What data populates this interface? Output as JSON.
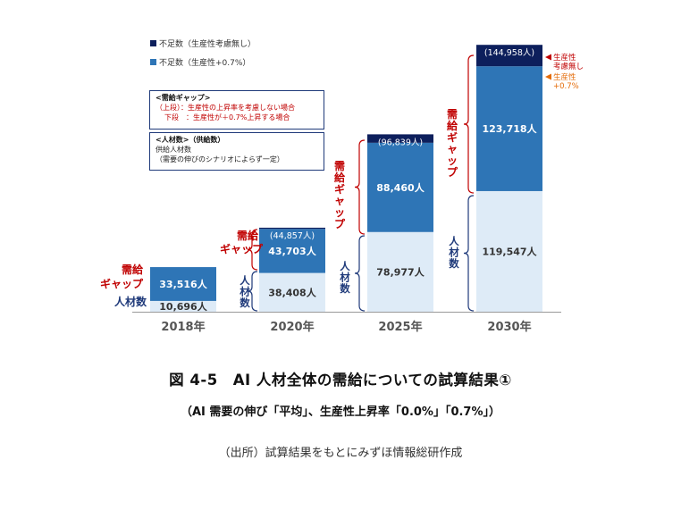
{
  "legend": {
    "items": [
      {
        "label": "不足数（生産性考慮無し）",
        "color": "#0d1f5c"
      },
      {
        "label": "不足数（生産性+0.7%）",
        "color": "#2e75b6"
      }
    ]
  },
  "gap_box": {
    "title": "<需給ギャップ>",
    "line1": "（上段）：生産性の上昇率を考慮しない場合",
    "line2": "下段　：生産性が＋0.7%上昇する場合"
  },
  "supply_box": {
    "title": "<人材数>（供給数）",
    "line1": "供給人材数",
    "line2": "（需要の伸びのシナリオによらず一定）"
  },
  "brace_labels": {
    "gap": "需給ギャップ",
    "gap_2020_a": "需給",
    "gap_2020_b": "ギャップ",
    "supply": "人材数"
  },
  "right_notes": {
    "no_productivity": "生産性\n考慮無し",
    "productivity": "生産性\n+0.7%"
  },
  "chart_data": {
    "type": "bar",
    "stacked": true,
    "categories": [
      "2018年",
      "2020年",
      "2025年",
      "2030年"
    ],
    "series": [
      {
        "name": "人材数",
        "values": [
          10696,
          38408,
          78977,
          119547
        ],
        "labels": [
          "10,696人",
          "38,408人",
          "78,977人",
          "119,547人"
        ],
        "color": "#deebf7"
      },
      {
        "name": "不足数（生産性+0.7%）",
        "values": [
          33516,
          43703,
          88460,
          123718
        ],
        "labels": [
          "33,516人",
          "43,703人",
          "88,460人",
          "123,718人"
        ],
        "color": "#2e75b6"
      },
      {
        "name": "不足数（生産性考慮無し）",
        "values": [
          null,
          1154,
          8379,
          21240
        ],
        "labels": [
          null,
          "(44,857人)",
          "(96,839人)",
          "(144,958人)"
        ],
        "totals": [
          null,
          44857,
          96839,
          144958
        ],
        "color": "#0d1f5c"
      }
    ],
    "ylim": [
      0,
      270000
    ]
  },
  "title": "図 4-5　AI 人材全体の需給についての試算結果①",
  "subtitle": "（AI 需要の伸び「平均」、生産性上昇率「0.0%」「0.7%」）",
  "source": "（出所）試算結果をもとにみずほ情報総研作成"
}
